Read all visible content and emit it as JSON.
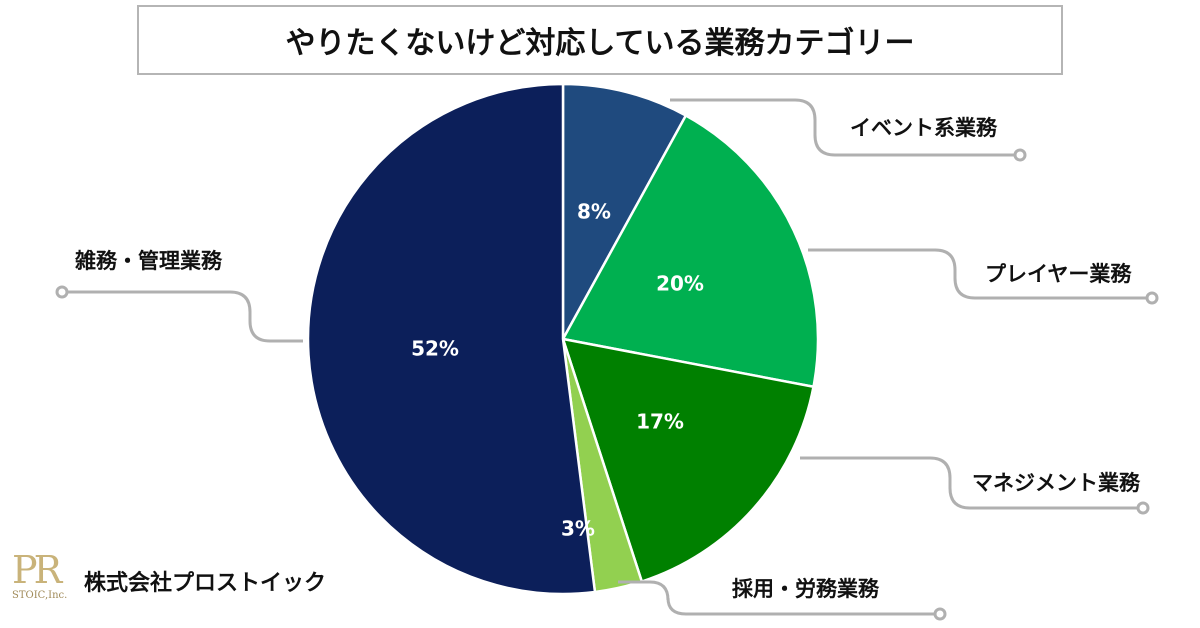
{
  "chart_data": {
    "type": "pie",
    "title": "やりたくないけど対応している業務カテゴリー",
    "start": "top-clockwise",
    "slices": [
      {
        "label": "イベント系業務",
        "value": 8,
        "value_label": "8%",
        "color": "#1f4a7e"
      },
      {
        "label": "プレイヤー業務",
        "value": 20,
        "value_label": "20%",
        "color": "#00b050"
      },
      {
        "label": "マネジメント業務",
        "value": 17,
        "value_label": "17%",
        "color": "#008000"
      },
      {
        "label": "採用・労務業務",
        "value": 3,
        "value_label": "3%",
        "color": "#92d050"
      },
      {
        "label": "雑務・管理業務",
        "value": 52,
        "value_label": "52%",
        "color": "#0c1f5a"
      }
    ]
  },
  "branding": {
    "company": "株式会社プロストイック",
    "logo_text": "PR",
    "logo_sub": "STOIC,Inc."
  }
}
